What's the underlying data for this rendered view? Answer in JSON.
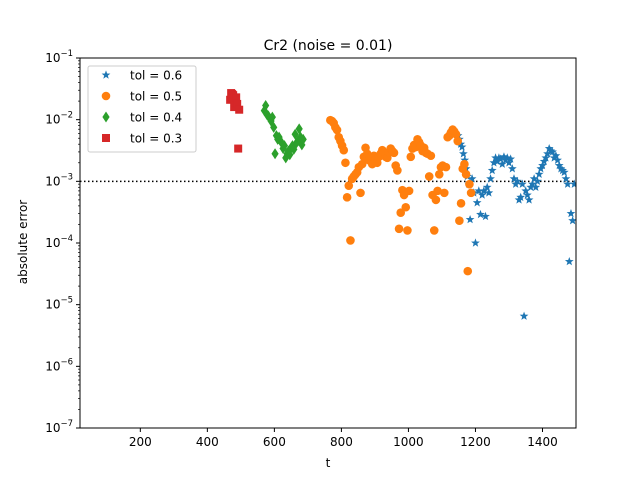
{
  "chart_data": {
    "type": "scatter",
    "title": "Cr2 (noise = 0.01)",
    "xlabel": "t",
    "ylabel": "absolute error",
    "xlim": [
      20,
      1500
    ],
    "ylim": [
      1e-07,
      0.1
    ],
    "yscale": "log",
    "x_ticks": [
      200,
      400,
      600,
      800,
      1000,
      1200,
      1400
    ],
    "y_ticks": [
      {
        "value": 1e-07,
        "label": "10",
        "exp": "−7"
      },
      {
        "value": 1e-06,
        "label": "10",
        "exp": "−6"
      },
      {
        "value": 1e-05,
        "label": "10",
        "exp": "−5"
      },
      {
        "value": 0.0001,
        "label": "10",
        "exp": "−4"
      },
      {
        "value": 0.001,
        "label": "10",
        "exp": "−3"
      },
      {
        "value": 0.01,
        "label": "10",
        "exp": "−2"
      },
      {
        "value": 0.1,
        "label": "10",
        "exp": "−1"
      }
    ],
    "reference_line": {
      "y": 0.001,
      "style": "dotted",
      "color": "#000000"
    },
    "grid": false,
    "legend_position": "top-left",
    "series": [
      {
        "name": "tol = 0.6",
        "marker": "star",
        "color": "#1f77b4",
        "points": [
          [
            1148,
            0.0055
          ],
          [
            1152,
            0.0048
          ],
          [
            1156,
            0.004
          ],
          [
            1160,
            0.0036
          ],
          [
            1164,
            0.0028
          ],
          [
            1168,
            0.0022
          ],
          [
            1172,
            0.0016
          ],
          [
            1176,
            0.0012
          ],
          [
            1180,
            0.0009
          ],
          [
            1184,
            0.00024
          ],
          [
            1190,
            0.0011
          ],
          [
            1195,
            0.00065
          ],
          [
            1200,
            0.0001
          ],
          [
            1205,
            0.00045
          ],
          [
            1210,
            0.0007
          ],
          [
            1215,
            0.00029
          ],
          [
            1220,
            0.0006
          ],
          [
            1225,
            0.0007
          ],
          [
            1230,
            0.00027
          ],
          [
            1235,
            0.0008
          ],
          [
            1240,
            0.00065
          ],
          [
            1245,
            0.0011
          ],
          [
            1250,
            0.0015
          ],
          [
            1255,
            0.002
          ],
          [
            1260,
            0.0024
          ],
          [
            1265,
            0.0021
          ],
          [
            1270,
            0.0024
          ],
          [
            1275,
            0.0023
          ],
          [
            1280,
            0.0019
          ],
          [
            1285,
            0.0025
          ],
          [
            1290,
            0.0022
          ],
          [
            1295,
            0.0024
          ],
          [
            1300,
            0.002
          ],
          [
            1305,
            0.0023
          ],
          [
            1310,
            0.0016
          ],
          [
            1315,
            0.0011
          ],
          [
            1320,
            0.0009
          ],
          [
            1325,
            0.001
          ],
          [
            1330,
            0.0005
          ],
          [
            1335,
            0.00055
          ],
          [
            1340,
            0.0009
          ],
          [
            1345,
            6.5e-06
          ],
          [
            1350,
            0.0007
          ],
          [
            1355,
            0.0006
          ],
          [
            1360,
            0.0005
          ],
          [
            1365,
            0.0008
          ],
          [
            1370,
            0.0009
          ],
          [
            1375,
            0.0011
          ],
          [
            1380,
            0.0008
          ],
          [
            1385,
            0.001
          ],
          [
            1390,
            0.0013
          ],
          [
            1395,
            0.0016
          ],
          [
            1400,
            0.0018
          ],
          [
            1405,
            0.0021
          ],
          [
            1410,
            0.0024
          ],
          [
            1415,
            0.0028
          ],
          [
            1420,
            0.0034
          ],
          [
            1425,
            0.0031
          ],
          [
            1430,
            0.003
          ],
          [
            1435,
            0.0024
          ],
          [
            1440,
            0.0026
          ],
          [
            1445,
            0.0022
          ],
          [
            1450,
            0.0018
          ],
          [
            1455,
            0.0016
          ],
          [
            1460,
            0.0015
          ],
          [
            1465,
            0.0014
          ],
          [
            1470,
            0.0011
          ],
          [
            1475,
            0.0009
          ],
          [
            1480,
            5e-05
          ],
          [
            1485,
            0.0003
          ],
          [
            1490,
            0.00023
          ],
          [
            1495,
            0.0009
          ]
        ]
      },
      {
        "name": "tol = 0.5",
        "marker": "circle",
        "color": "#ff7f0e",
        "points": [
          [
            767,
            0.0098
          ],
          [
            772,
            0.0095
          ],
          [
            777,
            0.0088
          ],
          [
            782,
            0.0075
          ],
          [
            787,
            0.0068
          ],
          [
            792,
            0.0052
          ],
          [
            797,
            0.0045
          ],
          [
            802,
            0.0038
          ],
          [
            807,
            0.0032
          ],
          [
            812,
            0.002
          ],
          [
            817,
            0.00055
          ],
          [
            822,
            0.00085
          ],
          [
            827,
            0.00011
          ],
          [
            832,
            0.0011
          ],
          [
            837,
            0.0012
          ],
          [
            842,
            0.0013
          ],
          [
            847,
            0.0014
          ],
          [
            852,
            0.0017
          ],
          [
            857,
            0.00065
          ],
          [
            862,
            0.0019
          ],
          [
            867,
            0.0025
          ],
          [
            872,
            0.0035
          ],
          [
            877,
            0.0028
          ],
          [
            882,
            0.0022
          ],
          [
            887,
            0.0025
          ],
          [
            892,
            0.0019
          ],
          [
            897,
            0.0026
          ],
          [
            902,
            0.0023
          ],
          [
            907,
            0.002
          ],
          [
            912,
            0.0025
          ],
          [
            917,
            0.0028
          ],
          [
            922,
            0.0032
          ],
          [
            927,
            0.0029
          ],
          [
            932,
            0.0025
          ],
          [
            937,
            0.0024
          ],
          [
            942,
            0.003
          ],
          [
            947,
            0.0034
          ],
          [
            952,
            0.0031
          ],
          [
            957,
            0.0029
          ],
          [
            962,
            0.0018
          ],
          [
            967,
            0.0015
          ],
          [
            972,
            0.00017
          ],
          [
            977,
            0.00031
          ],
          [
            982,
            0.00072
          ],
          [
            987,
            0.0006
          ],
          [
            992,
            0.00038
          ],
          [
            997,
            0.00016
          ],
          [
            1002,
            0.0007
          ],
          [
            1007,
            0.0025
          ],
          [
            1012,
            0.0034
          ],
          [
            1017,
            0.0039
          ],
          [
            1022,
            0.0036
          ],
          [
            1027,
            0.0048
          ],
          [
            1032,
            0.0043
          ],
          [
            1037,
            0.0038
          ],
          [
            1042,
            0.0031
          ],
          [
            1047,
            0.0035
          ],
          [
            1052,
            0.0029
          ],
          [
            1057,
            0.0028
          ],
          [
            1062,
            0.0012
          ],
          [
            1067,
            0.0026
          ],
          [
            1072,
            0.0006
          ],
          [
            1077,
            0.00016
          ],
          [
            1082,
            0.0005
          ],
          [
            1087,
            0.0007
          ],
          [
            1092,
            0.0013
          ],
          [
            1097,
            0.0017
          ],
          [
            1102,
            0.0018
          ],
          [
            1107,
            0.00065
          ],
          [
            1112,
            0.0017
          ],
          [
            1117,
            0.0052
          ],
          [
            1122,
            0.0055
          ],
          [
            1127,
            0.0062
          ],
          [
            1132,
            0.0069
          ],
          [
            1137,
            0.0064
          ],
          [
            1142,
            0.0058
          ],
          [
            1147,
            0.0045
          ],
          [
            1152,
            0.00023
          ],
          [
            1157,
            0.00044
          ],
          [
            1162,
            0.0016
          ],
          [
            1167,
            0.0019
          ],
          [
            1172,
            0.0013
          ],
          [
            1177,
            3.5e-05
          ],
          [
            1182,
            0.0009
          ],
          [
            1187,
            0.00065
          ]
        ]
      },
      {
        "name": "tol = 0.4",
        "marker": "diamond",
        "color": "#2ca02c",
        "points": [
          [
            570,
            0.014
          ],
          [
            574,
            0.017
          ],
          [
            578,
            0.012
          ],
          [
            582,
            0.0115
          ],
          [
            586,
            0.0105
          ],
          [
            590,
            0.0095
          ],
          [
            594,
            0.011
          ],
          [
            598,
            0.0075
          ],
          [
            602,
            0.0028
          ],
          [
            606,
            0.0055
          ],
          [
            610,
            0.0048
          ],
          [
            614,
            0.0052
          ],
          [
            618,
            0.0045
          ],
          [
            622,
            0.0042
          ],
          [
            626,
            0.0034
          ],
          [
            630,
            0.0038
          ],
          [
            634,
            0.0024
          ],
          [
            638,
            0.0028
          ],
          [
            642,
            0.0031
          ],
          [
            646,
            0.0027
          ],
          [
            650,
            0.0035
          ],
          [
            654,
            0.0038
          ],
          [
            658,
            0.0033
          ],
          [
            662,
            0.0058
          ],
          [
            666,
            0.0042
          ],
          [
            670,
            0.0045
          ],
          [
            674,
            0.0071
          ],
          [
            678,
            0.0052
          ],
          [
            682,
            0.0039
          ],
          [
            686,
            0.0048
          ]
        ]
      },
      {
        "name": "tol = 0.3",
        "marker": "square",
        "color": "#d62728",
        "points": [
          [
            468,
            0.021
          ],
          [
            471,
            0.027
          ],
          [
            474,
            0.026
          ],
          [
            477,
            0.025
          ],
          [
            480,
            0.016
          ],
          [
            483,
            0.019
          ],
          [
            486,
            0.023
          ],
          [
            489,
            0.018
          ],
          [
            492,
            0.0034
          ],
          [
            495,
            0.0145
          ]
        ]
      }
    ]
  }
}
